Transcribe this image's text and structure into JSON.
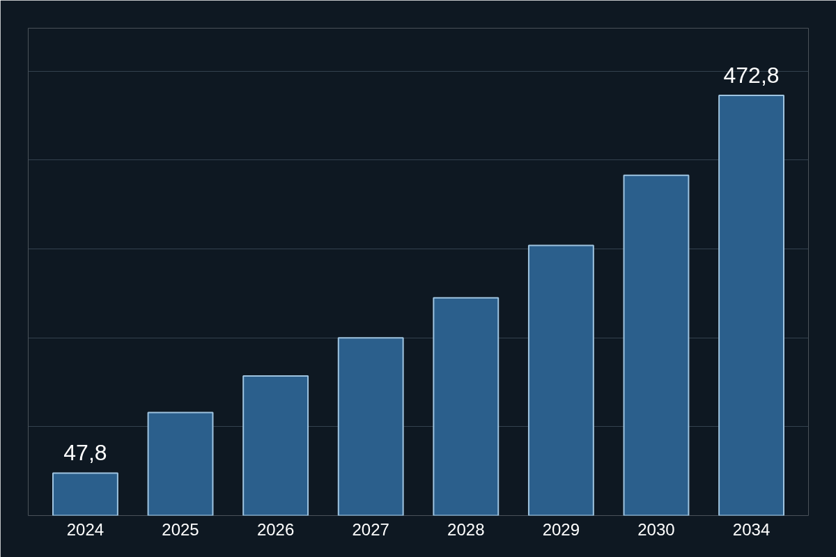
{
  "chart_data": {
    "type": "bar",
    "categories": [
      "2024",
      "2025",
      "2026",
      "2027",
      "2028",
      "2029",
      "2030",
      "2034"
    ],
    "values": [
      47.8,
      116,
      157,
      200,
      245,
      304,
      383,
      472.8
    ],
    "value_labels": [
      "47,8",
      null,
      null,
      null,
      null,
      null,
      null,
      "472,8"
    ],
    "color": "#2b5f8c",
    "grid": "y"
  }
}
